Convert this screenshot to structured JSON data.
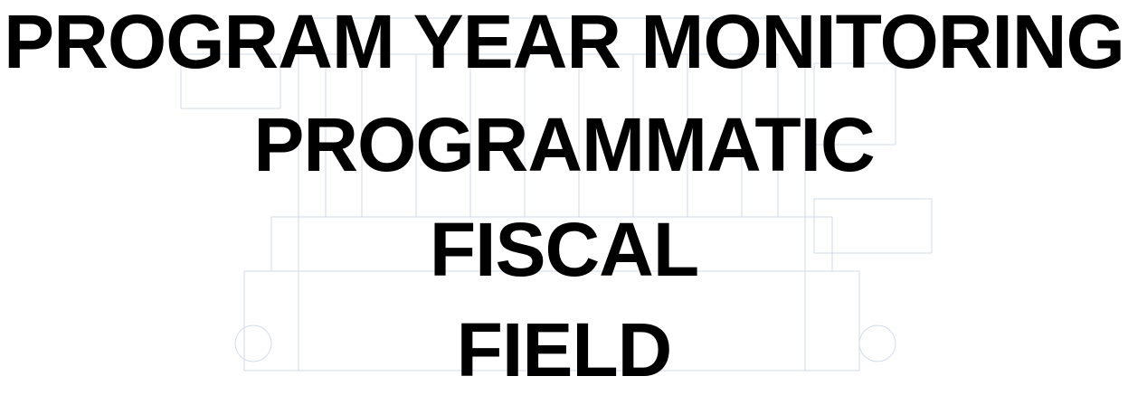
{
  "lines": [
    "PROGRAM YEAR MONITORING",
    "PROGRAMMATIC",
    "FISCAL",
    "FIELD"
  ]
}
